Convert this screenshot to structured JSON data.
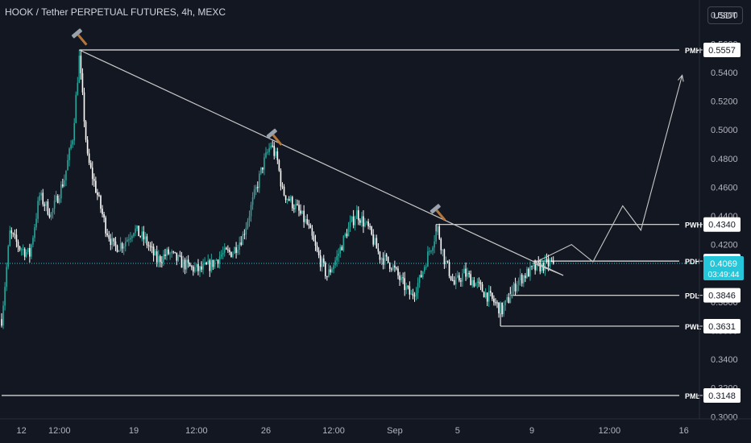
{
  "header": {
    "title": "HOOK / Tether PERPETUAL FUTURES, 4h, MEXC",
    "unit": "USDT"
  },
  "colors": {
    "background": "#131722",
    "up": "#26a69a",
    "down": "#ffffff",
    "line": "#e6e6e6",
    "current_price": "#26c6da",
    "axis_text": "#b2b5be"
  },
  "chart_data": {
    "type": "candlestick",
    "title": "HOOK / Tether PERPETUAL FUTURES, 4h, MEXC",
    "ylim": [
      0.2985,
      0.5905
    ],
    "y_ticks": [
      "0.5800",
      "0.5600",
      "0.5400",
      "0.5200",
      "0.5000",
      "0.4800",
      "0.4600",
      "0.4400",
      "0.4200",
      "0.4000",
      "0.3800",
      "0.3600",
      "0.3400",
      "0.3200",
      "0.3000"
    ],
    "x_ticks": [
      "12",
      "12:00",
      "19",
      "12:00",
      "26",
      "12:00",
      "Sep",
      "5",
      "9",
      "12:00",
      "16"
    ],
    "x_tick_index": [
      12,
      35,
      80,
      118,
      160,
      201,
      238,
      276,
      321,
      368,
      413
    ],
    "candle_count": 335,
    "levels": [
      {
        "label": "PMH",
        "value": "0.5557"
      },
      {
        "label": "PWH",
        "value": "0.4340"
      },
      {
        "label": "PDH",
        "value": "0.4085"
      },
      {
        "label": "PDL",
        "value": "0.3846"
      },
      {
        "label": "PWL",
        "value": "0.3631"
      },
      {
        "label": "PML",
        "value": "0.3148"
      }
    ],
    "current_price": "0.4069",
    "countdown": "03:49:44",
    "trendline": {
      "from": [
        47,
        0.5557
      ],
      "to": [
        340,
        0.3985
      ]
    },
    "projection": [
      [
        340,
        0.3985
      ],
      [
        322,
        0.407
      ],
      [
        345,
        0.42
      ],
      [
        358,
        0.408
      ],
      [
        376,
        0.447
      ],
      [
        387,
        0.43
      ],
      [
        412,
        0.538
      ]
    ],
    "hammer_markers": [
      [
        47,
        0.5653
      ],
      [
        165,
        0.4955
      ],
      [
        264,
        0.443
      ]
    ],
    "anchors": [
      {
        "i": 0,
        "p": 0.368
      },
      {
        "i": 5,
        "p": 0.428
      },
      {
        "i": 11,
        "p": 0.418
      },
      {
        "i": 17,
        "p": 0.413
      },
      {
        "i": 23,
        "p": 0.454
      },
      {
        "i": 30,
        "p": 0.441
      },
      {
        "i": 38,
        "p": 0.466
      },
      {
        "i": 43,
        "p": 0.495
      },
      {
        "i": 47,
        "p": 0.55
      },
      {
        "i": 52,
        "p": 0.48
      },
      {
        "i": 57,
        "p": 0.459
      },
      {
        "i": 63,
        "p": 0.432
      },
      {
        "i": 68,
        "p": 0.418
      },
      {
        "i": 74,
        "p": 0.421
      },
      {
        "i": 80,
        "p": 0.431
      },
      {
        "i": 87,
        "p": 0.423
      },
      {
        "i": 94,
        "p": 0.409
      },
      {
        "i": 101,
        "p": 0.414
      },
      {
        "i": 108,
        "p": 0.408
      },
      {
        "i": 114,
        "p": 0.404
      },
      {
        "i": 120,
        "p": 0.402
      },
      {
        "i": 127,
        "p": 0.406
      },
      {
        "i": 133,
        "p": 0.413
      },
      {
        "i": 140,
        "p": 0.415
      },
      {
        "i": 146,
        "p": 0.426
      },
      {
        "i": 152,
        "p": 0.45
      },
      {
        "i": 158,
        "p": 0.475
      },
      {
        "i": 163,
        "p": 0.49
      },
      {
        "i": 167,
        "p": 0.478
      },
      {
        "i": 170,
        "p": 0.457
      },
      {
        "i": 178,
        "p": 0.446
      },
      {
        "i": 185,
        "p": 0.434
      },
      {
        "i": 191,
        "p": 0.414
      },
      {
        "i": 197,
        "p": 0.398
      },
      {
        "i": 203,
        "p": 0.411
      },
      {
        "i": 209,
        "p": 0.429
      },
      {
        "i": 215,
        "p": 0.442
      },
      {
        "i": 222,
        "p": 0.431
      },
      {
        "i": 229,
        "p": 0.412
      },
      {
        "i": 236,
        "p": 0.406
      },
      {
        "i": 242,
        "p": 0.394
      },
      {
        "i": 248,
        "p": 0.384
      },
      {
        "i": 253,
        "p": 0.395
      },
      {
        "i": 259,
        "p": 0.416
      },
      {
        "i": 264,
        "p": 0.431
      },
      {
        "i": 268,
        "p": 0.41
      },
      {
        "i": 274,
        "p": 0.392
      },
      {
        "i": 280,
        "p": 0.4
      },
      {
        "i": 286,
        "p": 0.394
      },
      {
        "i": 292,
        "p": 0.387
      },
      {
        "i": 298,
        "p": 0.38
      },
      {
        "i": 303,
        "p": 0.374
      },
      {
        "i": 307,
        "p": 0.382
      },
      {
        "i": 312,
        "p": 0.394
      },
      {
        "i": 318,
        "p": 0.4
      },
      {
        "i": 324,
        "p": 0.404
      },
      {
        "i": 329,
        "p": 0.406
      },
      {
        "i": 334,
        "p": 0.4069
      }
    ]
  }
}
